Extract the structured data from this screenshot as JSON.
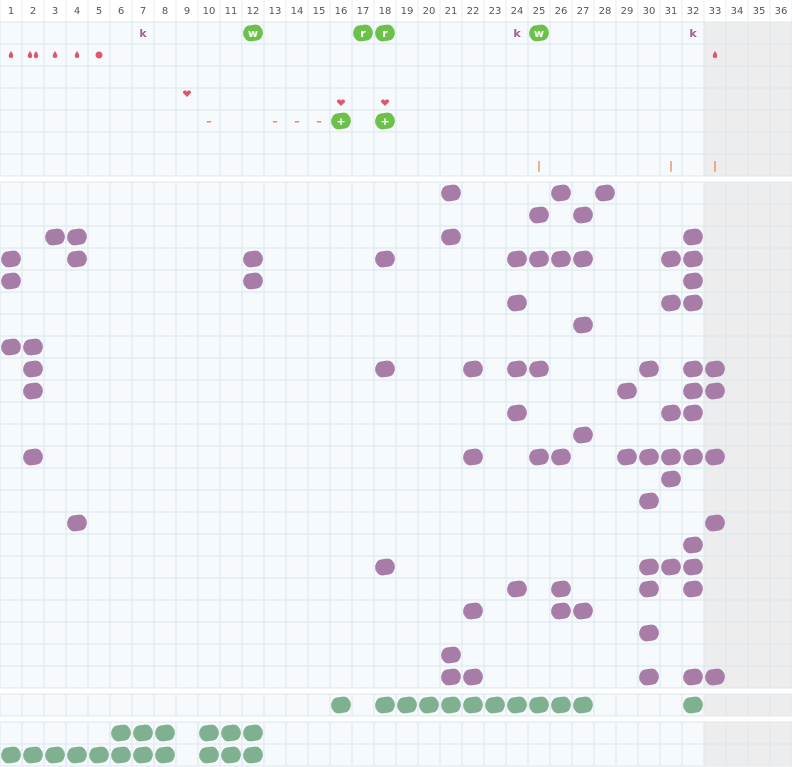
{
  "header": {
    "columns": [
      1,
      2,
      3,
      4,
      5,
      6,
      7,
      8,
      9,
      10,
      11,
      12,
      13,
      14,
      15,
      16,
      17,
      18,
      19,
      20,
      21,
      22,
      23,
      24,
      25,
      26,
      27,
      28,
      29,
      30,
      31,
      32,
      33,
      34,
      35,
      36
    ]
  },
  "top_rows": {
    "1": {
      "7": "k",
      "12": "w",
      "17": "r",
      "18": "r",
      "24": "k",
      "25": "w",
      "32": "k"
    },
    "5": {
      "10": "–",
      "13": "–",
      "14": "–",
      "15": "–",
      "16": "+",
      "18": "+"
    },
    "7": {
      "25": "|",
      "31": "|",
      "33": "|"
    }
  }
}
